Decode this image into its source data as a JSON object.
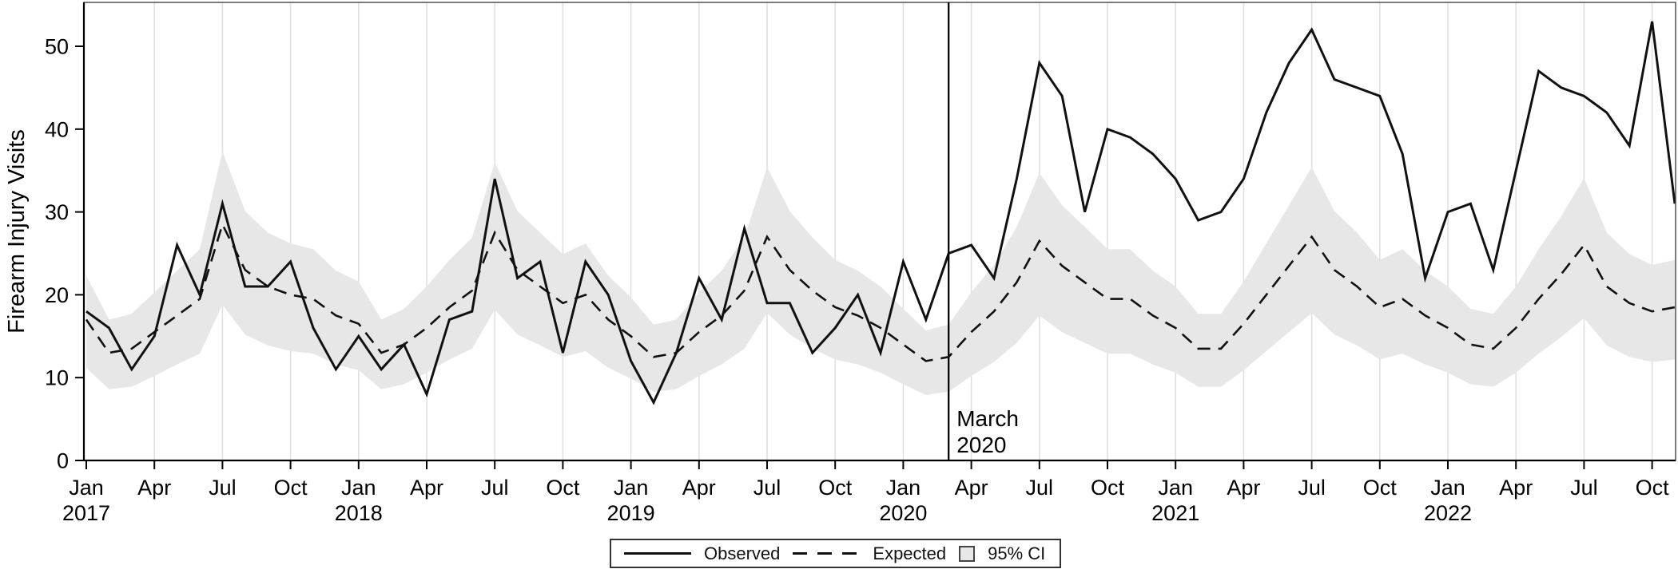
{
  "legend": {
    "observed": "Observed",
    "expected": "Expected",
    "ci": "95% CI"
  },
  "chart_data": {
    "type": "line",
    "title": "",
    "ylabel": "Firearm Injury Visits",
    "xlabel": "",
    "ylim": [
      0,
      55.3
    ],
    "y_ticks": [
      0,
      10,
      20,
      30,
      40,
      50
    ],
    "x_start": "Jan 2017",
    "x_end": "Nov 2022",
    "grid": "vertical-quarterly",
    "legend_position": "bottom-center",
    "x_ticks": [
      {
        "month": "Jan",
        "year": "2017"
      },
      {
        "month": "Apr",
        "year": ""
      },
      {
        "month": "Jul",
        "year": ""
      },
      {
        "month": "Oct",
        "year": ""
      },
      {
        "month": "Jan",
        "year": "2018"
      },
      {
        "month": "Apr",
        "year": ""
      },
      {
        "month": "Jul",
        "year": ""
      },
      {
        "month": "Oct",
        "year": ""
      },
      {
        "month": "Jan",
        "year": "2019"
      },
      {
        "month": "Apr",
        "year": ""
      },
      {
        "month": "Jul",
        "year": ""
      },
      {
        "month": "Oct",
        "year": ""
      },
      {
        "month": "Jan",
        "year": "2020"
      },
      {
        "month": "Apr",
        "year": ""
      },
      {
        "month": "Jul",
        "year": ""
      },
      {
        "month": "Oct",
        "year": ""
      },
      {
        "month": "Jan",
        "year": "2021"
      },
      {
        "month": "Apr",
        "year": ""
      },
      {
        "month": "Jul",
        "year": ""
      },
      {
        "month": "Oct",
        "year": ""
      },
      {
        "month": "Jan",
        "year": "2022"
      },
      {
        "month": "Apr",
        "year": ""
      },
      {
        "month": "Jul",
        "year": ""
      },
      {
        "month": "Oct",
        "year": ""
      }
    ],
    "annotation": {
      "line1": "March",
      "line2": "2020",
      "month_index": 38
    },
    "series": [
      {
        "name": "Observed",
        "style": "solid",
        "values": [
          18,
          16,
          11,
          15,
          26,
          20,
          31,
          21,
          21,
          24,
          16,
          11,
          15,
          11,
          14,
          8,
          17,
          18,
          34,
          22,
          24,
          13,
          24,
          20,
          12,
          7,
          13,
          22,
          17,
          28,
          19,
          19,
          13,
          16,
          20,
          13,
          24,
          17,
          25,
          26,
          22,
          34,
          48,
          44,
          30,
          40,
          39,
          37,
          34,
          29,
          30,
          34,
          42,
          48,
          52,
          46,
          45,
          44,
          37,
          22,
          30,
          31,
          23,
          35,
          47,
          45,
          44,
          42,
          38,
          53,
          31
        ]
      },
      {
        "name": "Expected",
        "style": "dashed",
        "values": [
          17,
          13,
          13.5,
          15.5,
          17.5,
          19.5,
          28.5,
          23,
          21,
          20,
          19.5,
          17.5,
          16.5,
          13,
          14,
          16,
          18.5,
          20.5,
          27.5,
          23,
          21,
          19,
          20,
          17,
          15,
          12.5,
          13,
          15.5,
          17.5,
          20.5,
          27,
          23,
          20.5,
          18.5,
          17.5,
          16,
          14,
          12,
          12.5,
          15.5,
          18,
          21.5,
          26.5,
          23.5,
          21.5,
          19.5,
          19.5,
          17.5,
          16,
          13.5,
          13.5,
          16.5,
          20,
          23.5,
          27,
          23,
          21,
          18.5,
          19.5,
          17.5,
          16,
          14,
          13.5,
          16,
          19.5,
          22.5,
          26,
          21,
          19,
          18,
          18.5
        ]
      }
    ],
    "ci_band": {
      "name": "95% CI",
      "lower": [
        11.2,
        8.6,
        8.9,
        10.2,
        11.6,
        12.9,
        18.8,
        15.2,
        13.9,
        13.2,
        12.9,
        11.6,
        10.9,
        8.6,
        9.2,
        10.6,
        12.2,
        13.5,
        18.2,
        15.2,
        13.9,
        12.5,
        13.2,
        11.2,
        9.9,
        8.3,
        8.6,
        10.2,
        11.6,
        13.5,
        17.8,
        15.2,
        13.5,
        12.2,
        11.6,
        10.6,
        9.2,
        7.9,
        8.3,
        10.2,
        11.9,
        14.2,
        17.5,
        15.5,
        14.2,
        12.9,
        12.9,
        11.6,
        10.6,
        8.9,
        8.9,
        10.9,
        13.2,
        15.5,
        17.8,
        15.2,
        13.9,
        12.2,
        12.9,
        11.6,
        10.6,
        9.2,
        8.9,
        10.6,
        12.9,
        14.9,
        17.2,
        13.9,
        12.5,
        11.9,
        12.2
      ],
      "upper": [
        22.3,
        17,
        17.7,
        20.3,
        22.9,
        25.5,
        37.3,
        30.1,
        27.5,
        26.2,
        25.5,
        22.9,
        21.6,
        17,
        18.3,
        21,
        24.2,
        26.9,
        36,
        30.1,
        27.5,
        24.9,
        26.2,
        22.3,
        19.7,
        16.4,
        17,
        20.3,
        22.9,
        26.9,
        35.4,
        30.1,
        26.9,
        24.2,
        22.9,
        21,
        18.3,
        15.7,
        16.4,
        20.3,
        23.6,
        28.2,
        34.7,
        30.8,
        28.2,
        25.5,
        25.5,
        22.9,
        21,
        17.7,
        17.7,
        21.6,
        26.2,
        30.8,
        35.4,
        30.1,
        27.5,
        24.2,
        25.5,
        22.9,
        21,
        18.3,
        17.7,
        21,
        25.5,
        29.5,
        34.1,
        27.5,
        24.9,
        23.6,
        24.2
      ]
    },
    "colors": {
      "line": "#111111",
      "ci_fill": "#e7e7e7",
      "gridline": "#dedede",
      "frame": "#444444"
    }
  }
}
